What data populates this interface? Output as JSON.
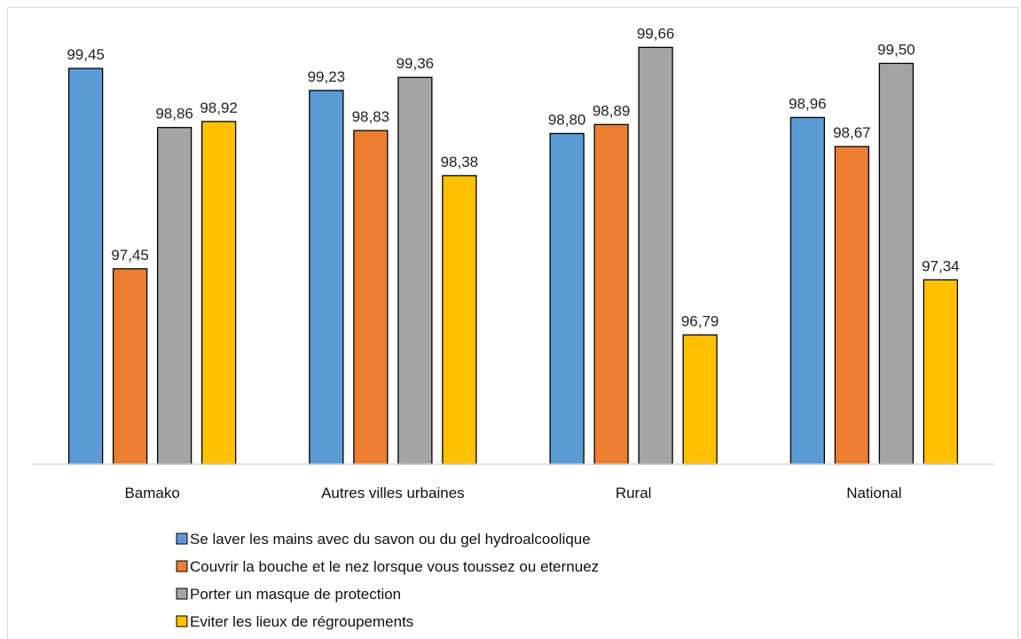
{
  "chart_data": {
    "type": "bar",
    "categories": [
      "Bamako",
      "Autres villes urbaines",
      "Rural",
      "National"
    ],
    "series": [
      {
        "name": "Se laver les mains avec du savon ou du gel hydroalcoolique",
        "color": "#5b9bd5",
        "values": [
          99.45,
          99.23,
          98.8,
          98.96
        ],
        "labels": [
          "99,45",
          "99,23",
          "98,80",
          "98,96"
        ]
      },
      {
        "name": "Couvrir la bouche et le nez lorsque vous toussez ou eternuez",
        "color": "#ed7d31",
        "values": [
          97.45,
          98.83,
          98.89,
          98.67
        ],
        "labels": [
          "97,45",
          "98,83",
          "98,89",
          "98,67"
        ]
      },
      {
        "name": "Porter un masque de protection",
        "color": "#a5a5a5",
        "values": [
          98.86,
          99.36,
          99.66,
          99.5
        ],
        "labels": [
          "98,86",
          "99,36",
          "99,66",
          "99,50"
        ]
      },
      {
        "name": "Eviter les lieux de régroupements",
        "color": "#ffc000",
        "values": [
          98.92,
          98.38,
          96.79,
          97.34
        ],
        "labels": [
          "98,92",
          "98,38",
          "96,79",
          "97,34"
        ]
      }
    ],
    "title": "",
    "xlabel": "",
    "ylabel": "",
    "ylim": [
      95.5,
      100
    ],
    "grid": false,
    "legend": "bottom"
  }
}
